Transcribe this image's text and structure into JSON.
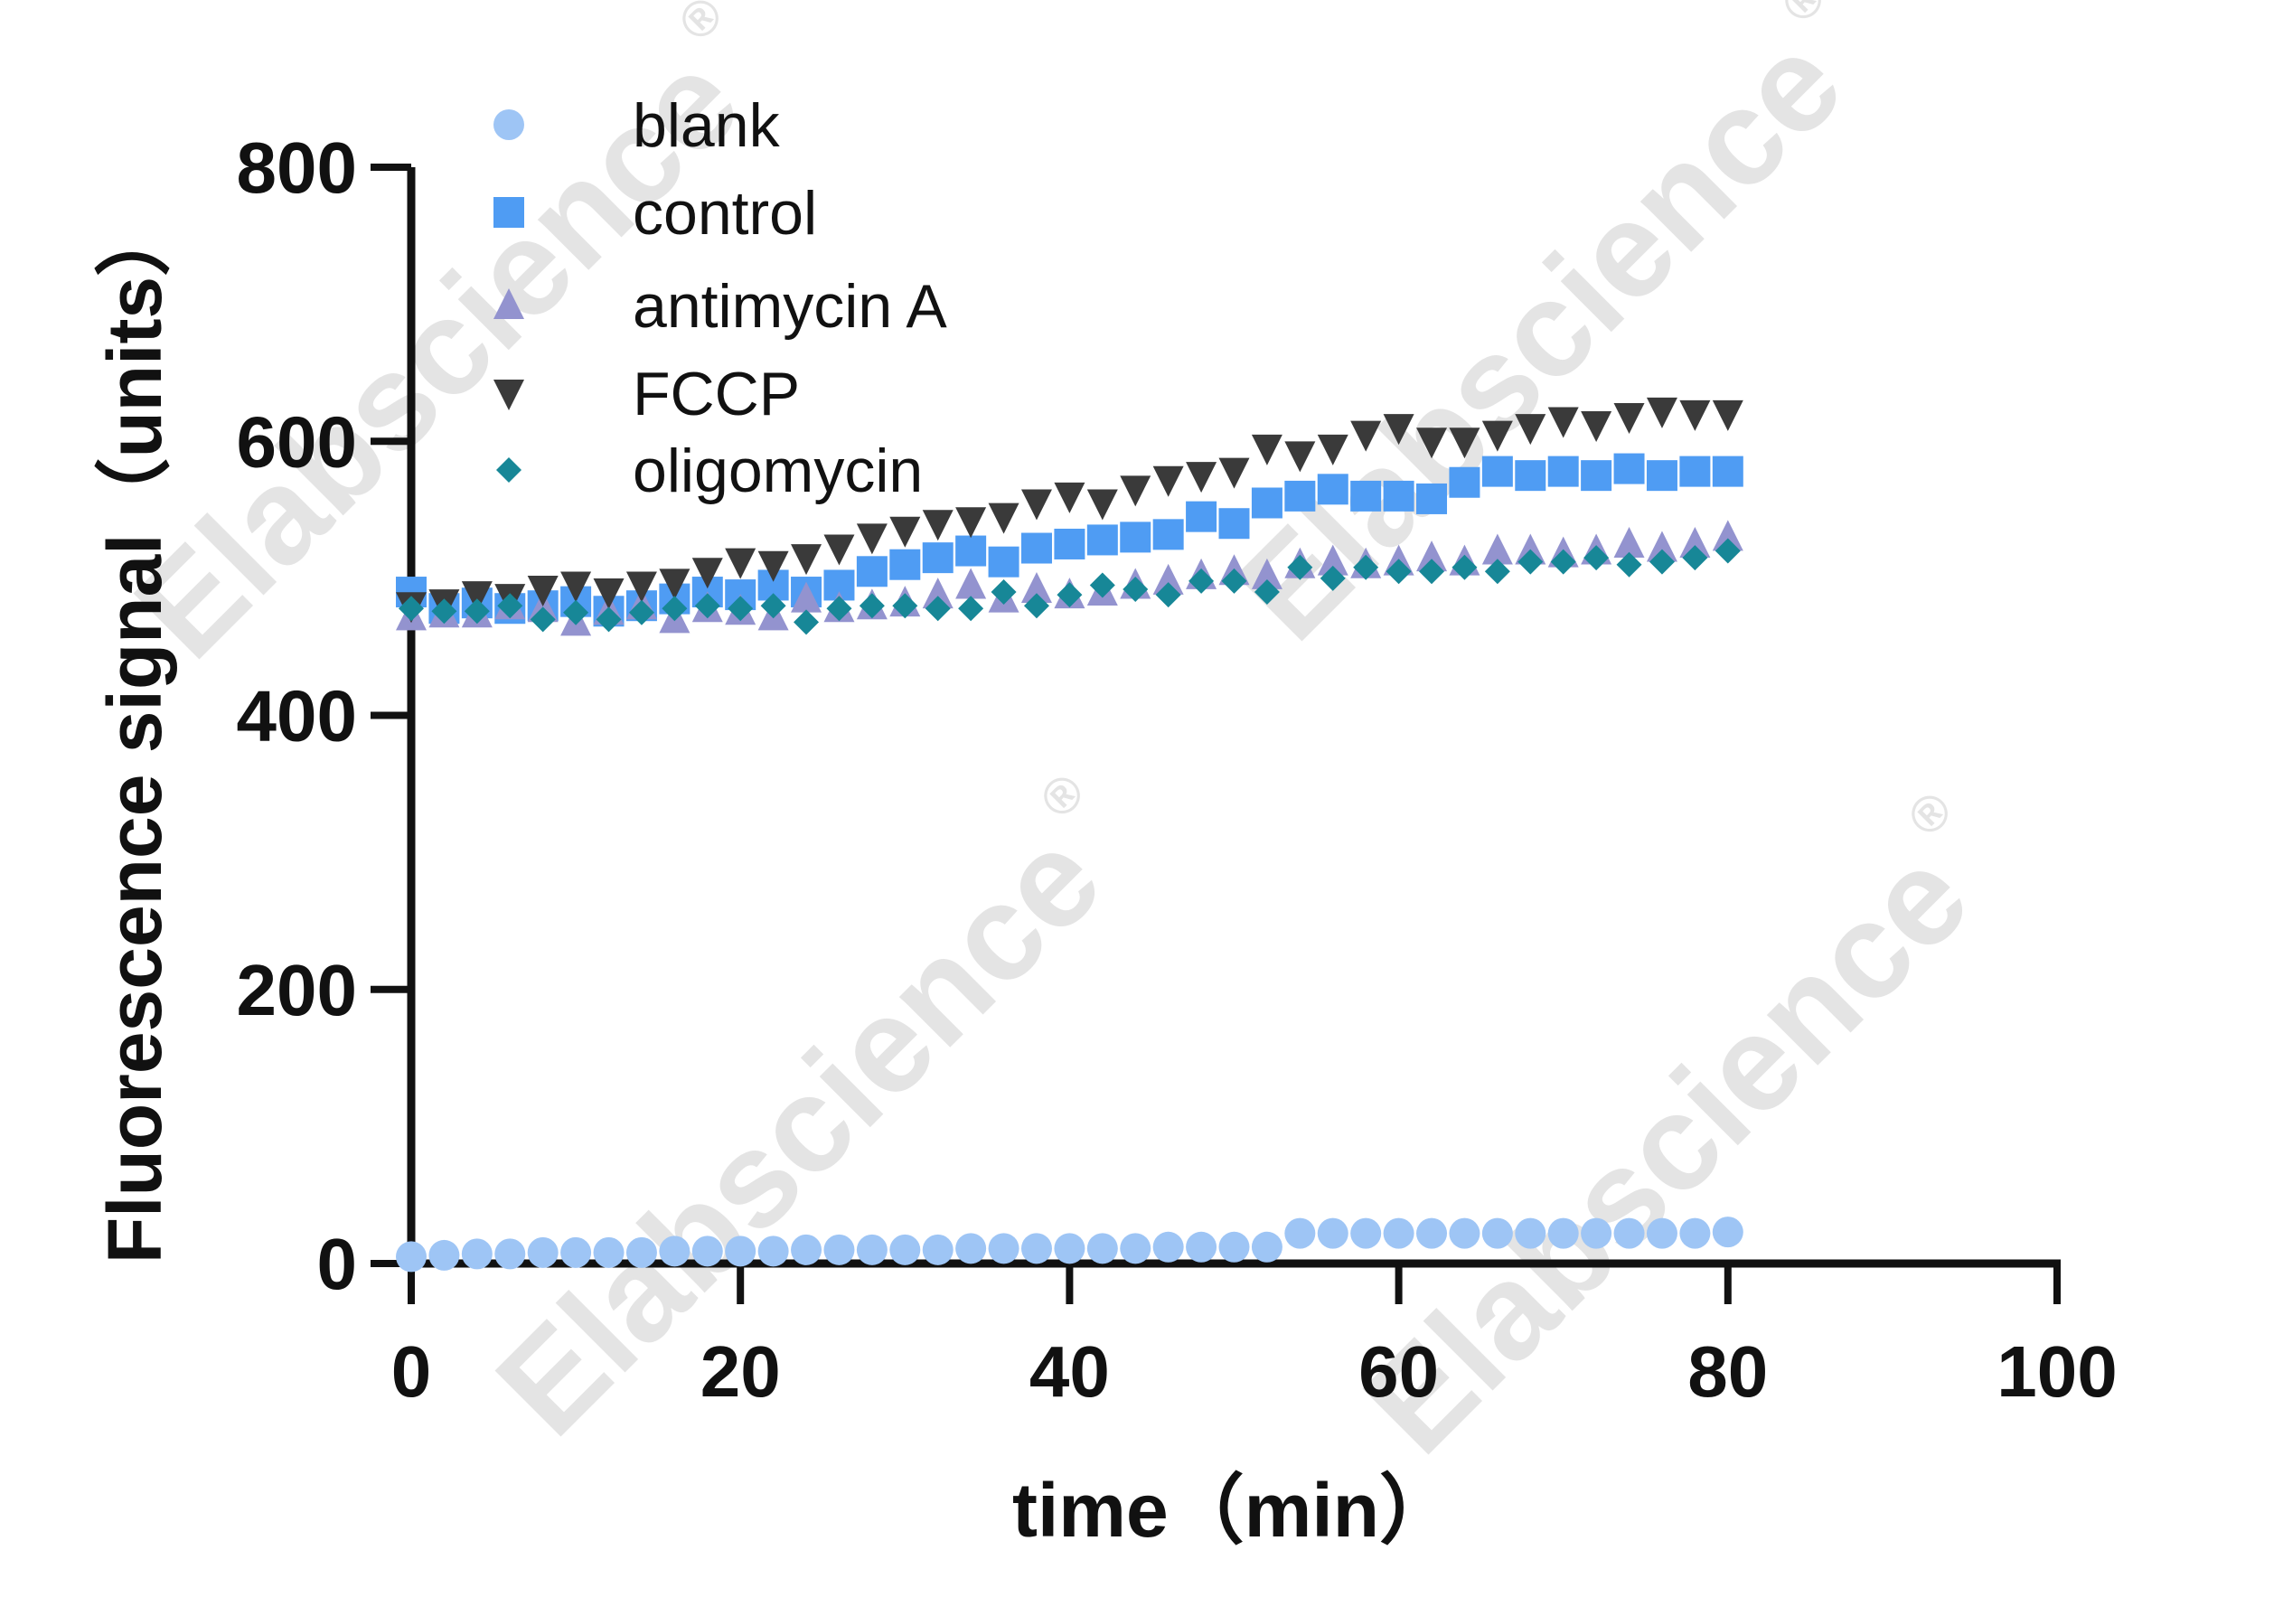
{
  "watermark": {
    "text": "Elabscience",
    "mark": "®"
  },
  "chart_data": {
    "type": "scatter",
    "xlabel": "time（min）",
    "ylabel": "Fluorescence signal（units）",
    "xlim": [
      0,
      100
    ],
    "ylim": [
      0,
      800
    ],
    "xticks": [
      0,
      20,
      40,
      60,
      80,
      100
    ],
    "yticks": [
      0,
      200,
      400,
      600,
      800
    ],
    "grid": false,
    "legend_position": "top-left",
    "series": [
      {
        "name": "blank",
        "marker": "circle",
        "color": "#9ec5f5",
        "x": [
          0,
          2,
          4,
          6,
          8,
          10,
          12,
          14,
          16,
          18,
          20,
          22,
          24,
          26,
          28,
          30,
          32,
          34,
          36,
          38,
          40,
          42,
          44,
          46,
          48,
          50,
          52,
          54,
          56,
          58,
          60,
          62,
          64,
          66,
          68,
          70,
          72,
          74,
          76,
          78,
          80
        ],
        "y": [
          5,
          6,
          7,
          7,
          8,
          8,
          8,
          8,
          9,
          9,
          9,
          9,
          10,
          10,
          10,
          10,
          10,
          11,
          11,
          11,
          11,
          11,
          11,
          12,
          12,
          12,
          12,
          22,
          22,
          22,
          22,
          22,
          22,
          22,
          22,
          22,
          22,
          22,
          22,
          22,
          23
        ]
      },
      {
        "name": "control",
        "marker": "square",
        "color": "#4f9cf3",
        "x": [
          0,
          2,
          4,
          6,
          8,
          10,
          12,
          14,
          16,
          18,
          20,
          22,
          24,
          26,
          28,
          30,
          32,
          34,
          36,
          38,
          40,
          42,
          44,
          46,
          48,
          50,
          52,
          54,
          56,
          58,
          60,
          62,
          64,
          66,
          68,
          70,
          72,
          74,
          76,
          78,
          80
        ],
        "y": [
          490,
          478,
          482,
          478,
          480,
          483,
          476,
          480,
          485,
          490,
          488,
          495,
          490,
          495,
          505,
          510,
          515,
          520,
          512,
          522,
          525,
          528,
          530,
          532,
          545,
          540,
          555,
          560,
          565,
          560,
          560,
          558,
          570,
          578,
          575,
          578,
          575,
          580,
          575,
          578,
          578
        ]
      },
      {
        "name": "antimycin A",
        "marker": "triangle-up",
        "color": "#9393cf",
        "x": [
          0,
          2,
          4,
          6,
          8,
          10,
          12,
          14,
          16,
          18,
          20,
          22,
          24,
          26,
          28,
          30,
          32,
          34,
          36,
          38,
          40,
          42,
          44,
          46,
          48,
          50,
          52,
          54,
          56,
          58,
          60,
          62,
          64,
          66,
          68,
          70,
          72,
          74,
          76,
          78,
          80
        ],
        "y": [
          472,
          474,
          474,
          480,
          478,
          468,
          476,
          480,
          470,
          478,
          476,
          472,
          485,
          478,
          480,
          482,
          488,
          495,
          485,
          492,
          488,
          490,
          495,
          498,
          502,
          505,
          502,
          510,
          512,
          510,
          512,
          515,
          512,
          520,
          520,
          518,
          520,
          525,
          522,
          525,
          530
        ]
      },
      {
        "name": "FCCP",
        "marker": "triangle-down",
        "color": "#3a3a3a",
        "x": [
          0,
          2,
          4,
          6,
          8,
          10,
          12,
          14,
          16,
          18,
          20,
          22,
          24,
          26,
          28,
          30,
          32,
          34,
          36,
          38,
          40,
          42,
          44,
          46,
          48,
          50,
          52,
          54,
          56,
          58,
          60,
          62,
          64,
          66,
          68,
          70,
          72,
          74,
          76,
          78,
          80
        ],
        "y": [
          480,
          482,
          488,
          486,
          492,
          495,
          490,
          495,
          497,
          505,
          512,
          510,
          515,
          522,
          530,
          535,
          540,
          542,
          545,
          555,
          560,
          555,
          565,
          572,
          575,
          578,
          595,
          590,
          595,
          605,
          610,
          600,
          600,
          605,
          610,
          615,
          612,
          618,
          622,
          620,
          620
        ]
      },
      {
        "name": "oligomycin",
        "marker": "diamond",
        "color": "#178797",
        "x": [
          0,
          2,
          4,
          6,
          8,
          10,
          12,
          14,
          16,
          18,
          20,
          22,
          24,
          26,
          28,
          30,
          32,
          34,
          36,
          38,
          40,
          42,
          44,
          46,
          48,
          50,
          52,
          54,
          56,
          58,
          60,
          62,
          64,
          66,
          68,
          70,
          72,
          74,
          76,
          78,
          80
        ],
        "y": [
          478,
          476,
          476,
          480,
          470,
          475,
          470,
          475,
          478,
          480,
          478,
          480,
          468,
          478,
          480,
          480,
          478,
          478,
          490,
          480,
          488,
          495,
          492,
          488,
          498,
          498,
          490,
          508,
          500,
          508,
          505,
          505,
          508,
          505,
          512,
          512,
          515,
          510,
          512,
          515,
          520
        ]
      }
    ]
  }
}
